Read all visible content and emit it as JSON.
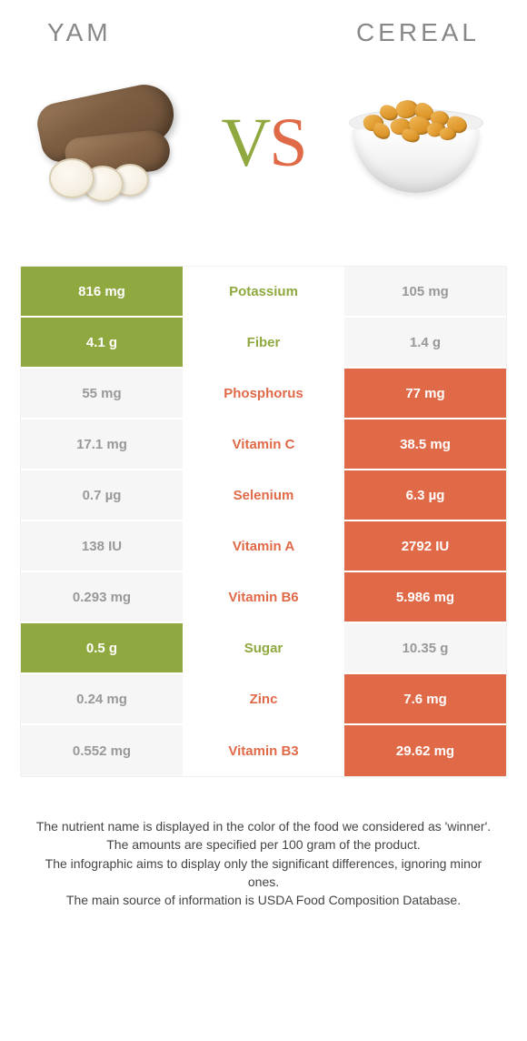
{
  "colors": {
    "left": "#8fa83f",
    "right": "#e06a48",
    "fade_bg": "#f6f6f6",
    "fade_text": "#999999",
    "title_text": "#888888",
    "footnote_text": "#444444"
  },
  "header": {
    "left_title": "Yam",
    "right_title": "Cereal",
    "vs_v": "V",
    "vs_s": "S"
  },
  "table": {
    "rows": [
      {
        "nutrient": "Potassium",
        "left": "816 mg",
        "right": "105 mg",
        "winner": "left"
      },
      {
        "nutrient": "Fiber",
        "left": "4.1 g",
        "right": "1.4 g",
        "winner": "left"
      },
      {
        "nutrient": "Phosphorus",
        "left": "55 mg",
        "right": "77 mg",
        "winner": "right"
      },
      {
        "nutrient": "Vitamin C",
        "left": "17.1 mg",
        "right": "38.5 mg",
        "winner": "right"
      },
      {
        "nutrient": "Selenium",
        "left": "0.7 µg",
        "right": "6.3 µg",
        "winner": "right"
      },
      {
        "nutrient": "Vitamin A",
        "left": "138 IU",
        "right": "2792 IU",
        "winner": "right"
      },
      {
        "nutrient": "Vitamin B6",
        "left": "0.293 mg",
        "right": "5.986 mg",
        "winner": "right"
      },
      {
        "nutrient": "Sugar",
        "left": "0.5 g",
        "right": "10.35 g",
        "winner": "left"
      },
      {
        "nutrient": "Zinc",
        "left": "0.24 mg",
        "right": "7.6 mg",
        "winner": "right"
      },
      {
        "nutrient": "Vitamin B3",
        "left": "0.552 mg",
        "right": "29.62 mg",
        "winner": "right"
      }
    ]
  },
  "footnotes": [
    "The nutrient name is displayed in the color of the food we considered as 'winner'.",
    "The amounts are specified per 100 gram of the product.",
    "The infographic aims to display only the significant differences, ignoring minor ones.",
    "The main source of information is USDA Food Composition Database."
  ]
}
